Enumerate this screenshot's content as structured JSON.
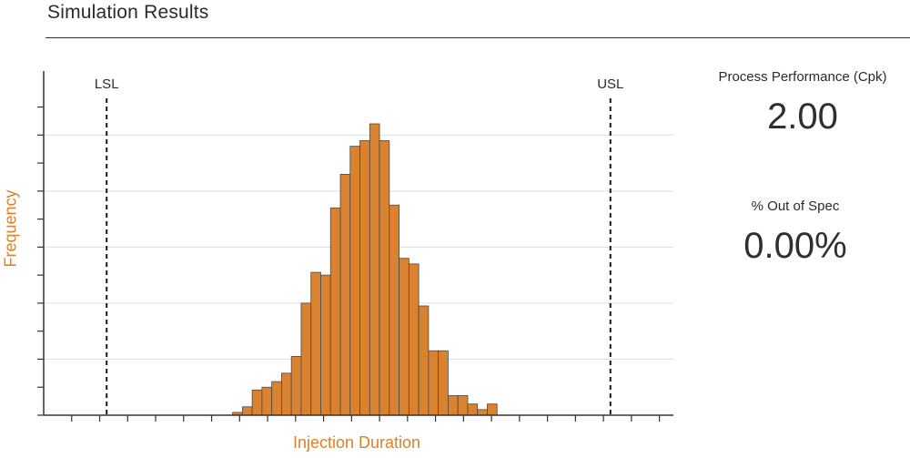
{
  "header": {
    "title": "Simulation Results"
  },
  "stats": [
    {
      "label": "Process Performance (Cpk)",
      "value": "2.00"
    },
    {
      "label": "% Out of Spec",
      "value": "0.00%"
    }
  ],
  "colors": {
    "bar_fill": "#d9822f",
    "bar_stroke": "#4a4a4a",
    "axis_label": "#d9822f",
    "grid": "#dddddd"
  },
  "chart_data": {
    "type": "bar",
    "title": "",
    "xlabel": "Injection Duration",
    "ylabel": "Frequency",
    "grid": true,
    "legend": "none",
    "x_range": [
      0,
      45
    ],
    "y_range": [
      0,
      52
    ],
    "spec_limits": [
      {
        "label": "LSL",
        "x": 4.5
      },
      {
        "label": "USL",
        "x": 40.5
      }
    ],
    "bins": [
      {
        "start": 13.5,
        "end": 14.2,
        "count": 0.5
      },
      {
        "start": 14.2,
        "end": 14.9,
        "count": 1.5
      },
      {
        "start": 14.9,
        "end": 15.6,
        "count": 4.5
      },
      {
        "start": 15.6,
        "end": 16.3,
        "count": 5
      },
      {
        "start": 16.3,
        "end": 17.0,
        "count": 6
      },
      {
        "start": 17.0,
        "end": 17.7,
        "count": 7.5
      },
      {
        "start": 17.7,
        "end": 18.4,
        "count": 10.5
      },
      {
        "start": 18.4,
        "end": 19.1,
        "count": 20
      },
      {
        "start": 19.1,
        "end": 19.8,
        "count": 25.5
      },
      {
        "start": 19.8,
        "end": 20.5,
        "count": 25
      },
      {
        "start": 20.5,
        "end": 21.2,
        "count": 37
      },
      {
        "start": 21.2,
        "end": 21.9,
        "count": 43
      },
      {
        "start": 21.9,
        "end": 22.6,
        "count": 48
      },
      {
        "start": 22.6,
        "end": 23.3,
        "count": 49
      },
      {
        "start": 23.3,
        "end": 24.0,
        "count": 52
      },
      {
        "start": 24.0,
        "end": 24.7,
        "count": 49
      },
      {
        "start": 24.7,
        "end": 25.4,
        "count": 37.5
      },
      {
        "start": 25.4,
        "end": 26.1,
        "count": 28
      },
      {
        "start": 26.1,
        "end": 26.8,
        "count": 27
      },
      {
        "start": 26.8,
        "end": 27.5,
        "count": 19.5
      },
      {
        "start": 27.5,
        "end": 28.2,
        "count": 11.5
      },
      {
        "start": 28.2,
        "end": 28.9,
        "count": 11.5
      },
      {
        "start": 28.9,
        "end": 29.6,
        "count": 3.5
      },
      {
        "start": 29.6,
        "end": 30.3,
        "count": 3.5
      },
      {
        "start": 30.3,
        "end": 31.0,
        "count": 2
      },
      {
        "start": 31.0,
        "end": 31.7,
        "count": 1
      },
      {
        "start": 31.7,
        "end": 32.4,
        "count": 2
      }
    ]
  }
}
